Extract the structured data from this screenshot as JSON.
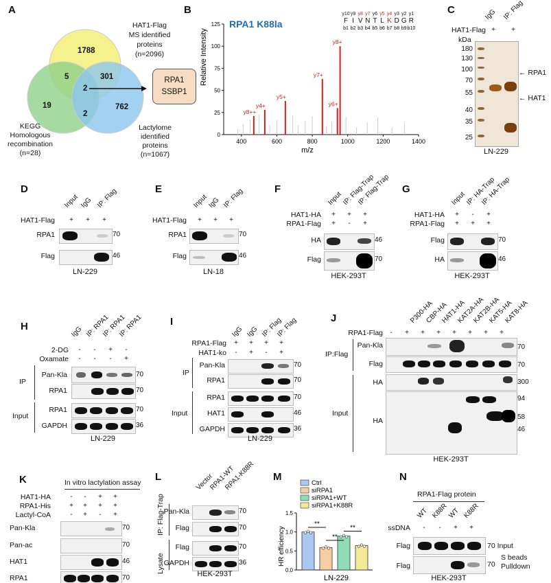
{
  "panels": {
    "A": "A",
    "B": "B",
    "C": "C",
    "D": "D",
    "E": "E",
    "F": "F",
    "G": "G",
    "H": "H",
    "I": "I",
    "J": "J",
    "K": "K",
    "L": "L",
    "M": "M",
    "N": "N"
  },
  "venn": {
    "hat1_label": [
      "HAT1-Flag",
      "MS identified",
      "proteins",
      "(n=2096)"
    ],
    "kegg_label": [
      "KEGG",
      "Homologous",
      "recombination",
      "(n=28)"
    ],
    "lact_label": [
      "Lactylome",
      "identified",
      "proteins",
      "(n=1067)"
    ],
    "counts": {
      "hat1_only": "1788",
      "kegg_only": "19",
      "lact_only": "762",
      "hat1_kegg": "5",
      "hat1_lact": "301",
      "kegg_lact": "2",
      "all": "2"
    },
    "box": [
      "RPA1",
      "SSBP1"
    ],
    "colors": {
      "hat1": "#f3f07a",
      "kegg": "#8fd18a",
      "lact": "#8cc6ee",
      "box": "#f6dcc3"
    }
  },
  "spectrum": {
    "title": "RPA1 K88la",
    "ylabel": "Relative Intensity",
    "xlabel": "m/z",
    "xticks": [
      "400",
      "600",
      "800",
      "1000",
      "1200",
      "1400"
    ],
    "yticks": [
      "0",
      "25",
      "50",
      "75",
      "100",
      "125"
    ],
    "y_ions": [
      "y10",
      "y9",
      "y8",
      "y7",
      "y6",
      "y5",
      "y4",
      "y3",
      "y2",
      "y1"
    ],
    "residues": [
      "F",
      "I",
      "V",
      "N",
      "T",
      "L",
      "K",
      "D",
      "G",
      "R"
    ],
    "b_ions": [
      "b1",
      "b2",
      "b3",
      "b4",
      "b5",
      "b6",
      "b7",
      "b8",
      "b9",
      "b10"
    ],
    "peaks": [
      {
        "label": "y8++",
        "mz": 470,
        "intensity": 21
      },
      {
        "label": "y4+",
        "mz": 532,
        "intensity": 28
      },
      {
        "label": "y5+",
        "mz": 648,
        "intensity": 38
      },
      {
        "label": "y7+",
        "mz": 857,
        "intensity": 63
      },
      {
        "label": "y6+",
        "mz": 942,
        "intensity": 30
      },
      {
        "label": "y8+",
        "mz": 957,
        "intensity": 100
      }
    ]
  },
  "C": {
    "col_labels": [
      "IgG",
      "IP: Flag"
    ],
    "row": "HAT1-Flag",
    "signs": [
      "+",
      "+"
    ],
    "kda": "kDa",
    "markers": [
      "180",
      "130",
      "100",
      "70",
      "55",
      "40",
      "35",
      "25"
    ],
    "arrows": [
      "RPA1",
      "HAT1"
    ],
    "caption": "LN-229"
  },
  "D": {
    "cols": [
      "Input",
      "IgG",
      "IP: Flag"
    ],
    "row": "HAT1-Flag",
    "signs": [
      "+",
      "+",
      "+"
    ],
    "blots": [
      "RPA1",
      "Flag"
    ],
    "mw": [
      "70",
      "46"
    ],
    "caption": "LN-229"
  },
  "E": {
    "cols": [
      "Input",
      "IgG",
      "IP: Flag"
    ],
    "row": "HAT1-Flag",
    "signs": [
      "+",
      "+",
      "+"
    ],
    "blots": [
      "RPA1",
      "Flag"
    ],
    "mw": [
      "70",
      "46"
    ],
    "caption": "LN-18"
  },
  "F": {
    "cols": [
      "Input",
      "IP: Flag-Trap",
      "IP: Flag-Trap"
    ],
    "rows": [
      "HAT1-HA",
      "RPA1-Flag"
    ],
    "signs": [
      [
        "+",
        "+",
        "+"
      ],
      [
        "+",
        "-",
        "+"
      ]
    ],
    "blots": [
      "HA",
      "Flag"
    ],
    "mw": [
      "46",
      "70"
    ],
    "caption": "HEK-293T"
  },
  "G": {
    "cols": [
      "Input",
      "IP: HA-Trap",
      "IP: HA-Trap"
    ],
    "rows": [
      "HAT1-HA",
      "RPA1-Flag"
    ],
    "signs": [
      [
        "+",
        "-",
        "+"
      ],
      [
        "+",
        "+",
        "+"
      ]
    ],
    "blots": [
      "Flag",
      "HA"
    ],
    "mw": [
      "70",
      "46"
    ],
    "caption": "HEK-293T"
  },
  "H": {
    "cols": [
      "IgG",
      "IP: RPA1",
      "IP: RPA1",
      "IP: RPA1"
    ],
    "rows": [
      "2-DG",
      "Oxamate"
    ],
    "signs": [
      [
        "-",
        "-",
        "+",
        "-"
      ],
      [
        "-",
        "-",
        "-",
        "+"
      ]
    ],
    "group_ip": "IP",
    "group_input": "Input",
    "blots": [
      "Pan-Kla",
      "RPA1",
      "RPA1",
      "GAPDH"
    ],
    "mw": [
      "70",
      "70",
      "70",
      "36"
    ],
    "caption": "LN-229"
  },
  "I": {
    "cols": [
      "IgG",
      "IgG",
      "IP: Flag",
      "IP: Flag"
    ],
    "rows": [
      "RPA1-Flag",
      "HAT1-ko"
    ],
    "signs": [
      [
        "+",
        "+",
        "+",
        "+"
      ],
      [
        "-",
        "+",
        "-",
        "+"
      ]
    ],
    "group_ip": "IP",
    "group_input": "Input",
    "blots": [
      "Pan-Kla",
      "RPA1",
      "RPA1",
      "HAT1",
      "GAPDH"
    ],
    "mw": [
      "70",
      "70",
      "70",
      "46",
      "36"
    ],
    "caption": "LN-229"
  },
  "J": {
    "cols": [
      "P300-HA",
      "CBP-HA",
      "HAT1-HA",
      "KAT2A-HA",
      "KAT2B-HA",
      "KAT5-HA",
      "KAT8-HA"
    ],
    "row": "RPA1-Flag",
    "signs": [
      "-",
      "+",
      "+",
      "+",
      "+",
      "+",
      "+",
      "+"
    ],
    "group_ip": "IP:Flag",
    "group_input": "Input",
    "blots": [
      "Pan-Kla",
      "Flag",
      "HA",
      "HA"
    ],
    "mw": [
      "70",
      "70",
      "300",
      "94",
      "58",
      "46"
    ],
    "caption": "HEK-293T"
  },
  "K": {
    "title": "In vitro lactylation assay",
    "rows": [
      "HAT1-HA",
      "RPA1-His",
      "Lactyl-CoA"
    ],
    "signs": [
      [
        "-",
        "-",
        "+",
        "+"
      ],
      [
        "+",
        "+",
        "+",
        "+"
      ],
      [
        "-",
        "+",
        "-",
        "+"
      ]
    ],
    "blots": [
      "Pan-Kla",
      "Pan-ac",
      "HAT1",
      "RPA1"
    ],
    "mw": [
      "70",
      "70",
      "46",
      "70"
    ]
  },
  "L": {
    "cols": [
      "Vector",
      "RPA1-WT",
      "RPA1-K88R"
    ],
    "group_ip": "IP: Flag-Trap",
    "group_lys": "Lysate",
    "blots": [
      "Pan-Kla",
      "Flag",
      "Flag",
      "GAPDH"
    ],
    "mw": [
      "70",
      "70",
      "70",
      "36"
    ],
    "caption": "HEK-293T"
  },
  "M": {
    "legend": [
      "Ctrl",
      "siRPA1",
      "siRPA1+WT",
      "siRPA1+K88R"
    ],
    "colors": [
      "#a9c8f0",
      "#f7cda3",
      "#8fdcb8",
      "#f3ea96"
    ],
    "ylabel": "HR efficiency",
    "yticks": [
      "0.0",
      "0.5",
      "1.0",
      "1.5"
    ],
    "sig": [
      "**",
      "**",
      "**"
    ],
    "caption": "LN-229"
  },
  "chart_data": {
    "type": "bar",
    "categories": [
      "Ctrl",
      "siRPA1",
      "siRPA1+WT",
      "siRPA1+K88R"
    ],
    "values": [
      1.0,
      0.59,
      0.89,
      0.64
    ],
    "ylabel": "HR efficiency",
    "ylim": [
      0,
      1.5
    ],
    "legend": "top"
  },
  "N": {
    "title": "RPA1-Flag protein",
    "cols": [
      "WT",
      "K88R",
      "WT",
      "K88R"
    ],
    "row": "ssDNA",
    "signs": [
      "-",
      "-",
      "+",
      "+"
    ],
    "blots": [
      "Flag",
      "Flag"
    ],
    "right": [
      "70 Input",
      "70"
    ],
    "pulldown": [
      "S beads",
      "Pulldown"
    ],
    "caption": "HEK-293T"
  }
}
